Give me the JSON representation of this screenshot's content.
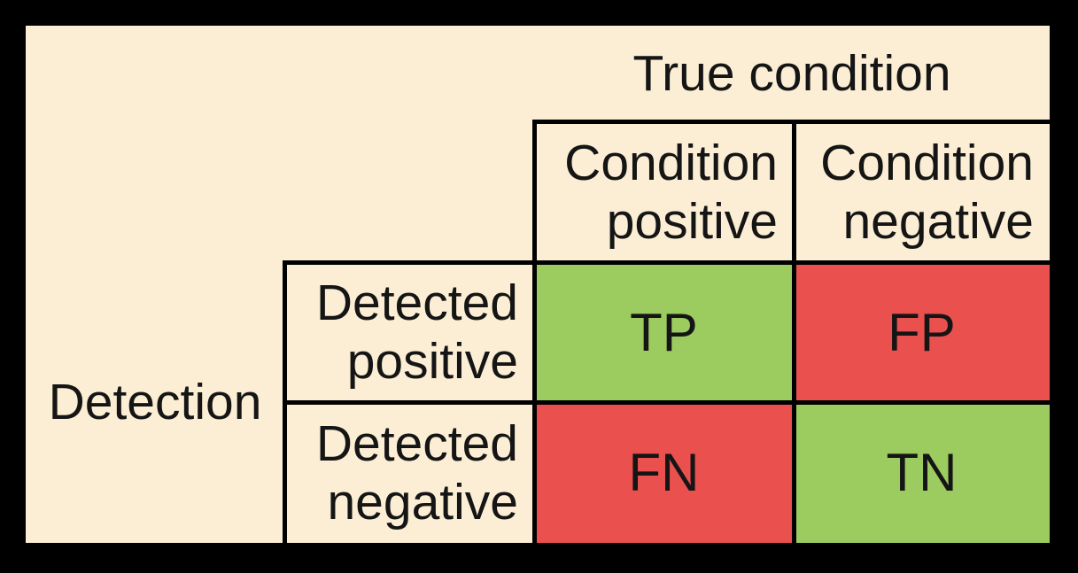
{
  "colors": {
    "background": "#000000",
    "panel": "#FBEED4",
    "green": "#9CCC60",
    "red": "#EA504D",
    "line": "#000000",
    "text": "#151515"
  },
  "matrix": {
    "axis_col_label": "True condition",
    "axis_row_label": "Detection",
    "col_headers": [
      {
        "line1": "Condition",
        "line2": "positive"
      },
      {
        "line1": "Condition",
        "line2": "negative"
      }
    ],
    "row_headers": [
      {
        "line1": "Detected",
        "line2": "positive"
      },
      {
        "line1": "Detected",
        "line2": "negative"
      }
    ],
    "cells": [
      {
        "label": "TP",
        "color": "green"
      },
      {
        "label": "FP",
        "color": "red"
      },
      {
        "label": "FN",
        "color": "red"
      },
      {
        "label": "TN",
        "color": "green"
      }
    ]
  }
}
